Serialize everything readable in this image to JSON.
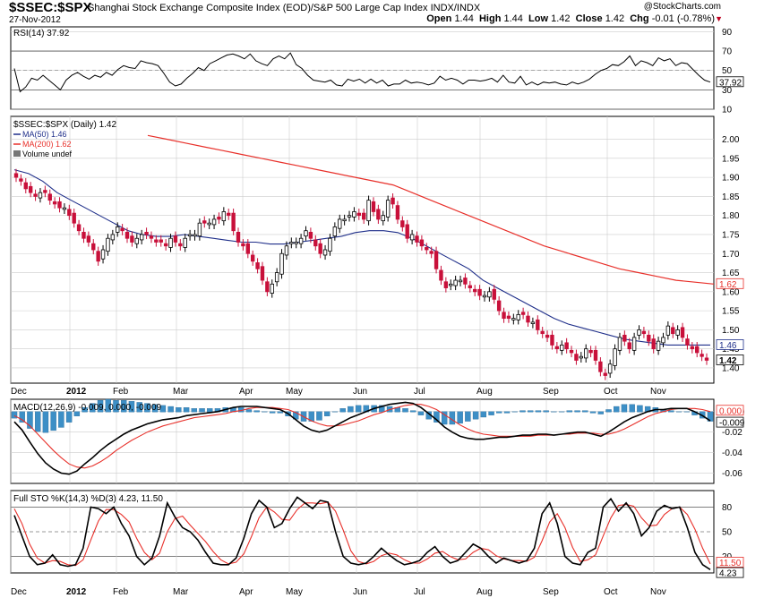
{
  "header": {
    "symbol": "$SSEC:$SPX",
    "name": "Shanghai Stock Exchange Composite Index (EOD)/S&P 500 Large Cap Index  INDX/INDX",
    "date": "27-Nov-2012",
    "credit": "@StockCharts.com",
    "open_label": "Open",
    "open": "1.44",
    "high_label": "High",
    "high": "1.44",
    "low_label": "Low",
    "low": "1.42",
    "close_label": "Close",
    "close": "1.42",
    "chg_label": "Chg",
    "chg": "-0.01 (-0.78%)"
  },
  "colors": {
    "up": "#ffffff",
    "down": "#c8103a",
    "ma50": "#1f2f8a",
    "ma200": "#e8302a",
    "histogram": "#3d8fc6",
    "macd_line": "#000000",
    "signal": "#e8302a",
    "sto_k": "#000000",
    "sto_d": "#e8302a",
    "grid": "#cccccc"
  },
  "chart_data": [
    {
      "type": "line",
      "panel": "rsi",
      "title": "RSI(14) 37.92",
      "y_ticks": [
        10,
        30,
        50,
        70,
        90
      ],
      "levels": [
        30,
        70
      ],
      "ylim": [
        10,
        95
      ],
      "last_label": "37.92",
      "series": [
        {
          "name": "RSI(14)",
          "values": [
            52,
            28,
            33,
            42,
            40,
            45,
            40,
            35,
            30,
            40,
            45,
            48,
            44,
            41,
            45,
            43,
            48,
            45,
            51,
            55,
            53,
            52,
            60,
            58,
            57,
            55,
            47,
            38,
            34,
            36,
            42,
            47,
            53,
            50,
            57,
            60,
            63,
            66,
            67,
            65,
            62,
            67,
            60,
            57,
            55,
            62,
            65,
            62,
            68,
            56,
            52,
            45,
            40,
            39,
            38,
            40,
            35,
            34,
            41,
            39,
            41,
            37,
            41,
            37,
            40,
            34,
            36,
            36,
            40,
            37,
            38,
            37,
            35,
            37,
            44,
            40,
            42,
            40,
            36,
            40,
            40,
            39,
            40,
            42,
            38,
            45,
            38,
            37,
            44,
            35,
            38,
            35,
            38,
            37,
            38,
            36,
            35,
            38,
            36,
            38,
            41,
            46,
            50,
            52,
            56,
            55,
            59,
            65,
            55,
            60,
            58,
            55,
            63,
            60,
            62,
            55,
            58,
            57,
            51,
            45,
            40,
            38
          ]
        }
      ]
    },
    {
      "type": "candlestick",
      "panel": "price",
      "title": "$SSEC:$SPX (Daily) 1.42",
      "legend": [
        "MA(50) 1.46",
        "MA(200) 1.62",
        "Volume undef"
      ],
      "y_ticks": [
        1.4,
        1.45,
        1.5,
        1.55,
        1.6,
        1.65,
        1.7,
        1.75,
        1.8,
        1.85,
        1.9,
        1.95,
        2.0
      ],
      "ylim": [
        1.36,
        2.06
      ],
      "x_labels": [
        "Dec",
        "2012",
        "Feb",
        "Mar",
        "Apr",
        "May",
        "Jun",
        "Jul",
        "Aug",
        "Sep",
        "Oct",
        "Nov"
      ],
      "last_labels": {
        "ma200": "1.62",
        "ma50": "1.46",
        "close": "1.42"
      },
      "close": [
        1.9,
        1.89,
        1.87,
        1.86,
        1.85,
        1.86,
        1.86,
        1.84,
        1.83,
        1.82,
        1.82,
        1.8,
        1.78,
        1.76,
        1.74,
        1.73,
        1.71,
        1.68,
        1.71,
        1.74,
        1.75,
        1.77,
        1.76,
        1.74,
        1.73,
        1.74,
        1.75,
        1.75,
        1.74,
        1.73,
        1.73,
        1.72,
        1.74,
        1.73,
        1.72,
        1.74,
        1.75,
        1.75,
        1.78,
        1.78,
        1.78,
        1.79,
        1.79,
        1.81,
        1.8,
        1.76,
        1.73,
        1.72,
        1.7,
        1.68,
        1.66,
        1.63,
        1.6,
        1.62,
        1.65,
        1.7,
        1.72,
        1.73,
        1.73,
        1.74,
        1.76,
        1.74,
        1.72,
        1.7,
        1.71,
        1.74,
        1.77,
        1.79,
        1.79,
        1.8,
        1.81,
        1.8,
        1.79,
        1.84,
        1.81,
        1.79,
        1.8,
        1.84,
        1.83,
        1.79,
        1.77,
        1.74,
        1.75,
        1.73,
        1.72,
        1.71,
        1.7,
        1.66,
        1.63,
        1.61,
        1.62,
        1.63,
        1.63,
        1.62,
        1.61,
        1.6,
        1.59,
        1.59,
        1.6,
        1.58,
        1.55,
        1.53,
        1.53,
        1.53,
        1.54,
        1.54,
        1.52,
        1.52,
        1.5,
        1.49,
        1.48,
        1.46,
        1.45,
        1.46,
        1.45,
        1.44,
        1.42,
        1.43,
        1.45,
        1.44,
        1.42,
        1.39,
        1.38,
        1.41,
        1.45,
        1.48,
        1.47,
        1.45,
        1.48,
        1.5,
        1.49,
        1.47,
        1.45,
        1.47,
        1.48,
        1.51,
        1.49,
        1.5,
        1.48,
        1.46,
        1.45,
        1.44,
        1.43,
        1.42
      ],
      "series": [
        {
          "name": "MA(50)",
          "values": [
            1.92,
            1.91,
            1.89,
            1.86,
            1.84,
            1.82,
            1.8,
            1.78,
            1.76,
            1.75,
            1.745,
            1.745,
            1.75,
            1.745,
            1.74,
            1.735,
            1.73,
            1.73,
            1.725,
            1.725,
            1.73,
            1.735,
            1.74,
            1.745,
            1.755,
            1.76,
            1.76,
            1.755,
            1.74,
            1.72,
            1.7,
            1.68,
            1.66,
            1.63,
            1.61,
            1.59,
            1.57,
            1.55,
            1.53,
            1.515,
            1.505,
            1.495,
            1.485,
            1.475,
            1.47,
            1.465,
            1.46,
            1.46,
            1.46,
            1.46
          ]
        },
        {
          "name": "MA(200)",
          "values": [
            2.01,
            2.0,
            1.99,
            1.98,
            1.97,
            1.96,
            1.95,
            1.94,
            1.93,
            1.92,
            1.91,
            1.9,
            1.89,
            1.88,
            1.86,
            1.84,
            1.82,
            1.8,
            1.78,
            1.76,
            1.74,
            1.72,
            1.705,
            1.69,
            1.675,
            1.66,
            1.65,
            1.64,
            1.63,
            1.625,
            1.62
          ]
        }
      ]
    },
    {
      "type": "bar",
      "panel": "macd",
      "title": "MACD(12,26,9) -0.009, 0.000, -0.009",
      "y_ticks": [
        0.0,
        -0.02,
        -0.04,
        -0.06
      ],
      "ylim": [
        -0.07,
        0.012
      ],
      "last_labels": {
        "signal": "0.000",
        "macd": "-0.009"
      },
      "series": [
        {
          "name": "MACD",
          "values": [
            -0.01,
            -0.018,
            -0.03,
            -0.041,
            -0.05,
            -0.056,
            -0.06,
            -0.061,
            -0.058,
            -0.051,
            -0.045,
            -0.038,
            -0.032,
            -0.027,
            -0.022,
            -0.018,
            -0.015,
            -0.012,
            -0.01,
            -0.008,
            -0.007,
            -0.006,
            -0.004,
            -0.003,
            -0.002,
            -0.001,
            0.0,
            0.002,
            0.004,
            0.005,
            0.005,
            0.005,
            0.004,
            0.003,
            0.002,
            -0.002,
            -0.008,
            -0.014,
            -0.018,
            -0.02,
            -0.018,
            -0.014,
            -0.01,
            -0.006,
            -0.003,
            0.0,
            0.003,
            0.005,
            0.007,
            0.008,
            0.009,
            0.008,
            0.004,
            -0.002,
            -0.008,
            -0.015,
            -0.02,
            -0.024,
            -0.026,
            -0.027,
            -0.027,
            -0.026,
            -0.025,
            -0.025,
            -0.024,
            -0.023,
            -0.023,
            -0.022,
            -0.022,
            -0.023,
            -0.022,
            -0.021,
            -0.02,
            -0.02,
            -0.022,
            -0.024,
            -0.02,
            -0.015,
            -0.01,
            -0.006,
            -0.003,
            0.0,
            0.002,
            0.002,
            0.003,
            0.003,
            0.003,
            0.0,
            -0.004,
            -0.009
          ]
        },
        {
          "name": "Signal",
          "values": [
            -0.004,
            -0.008,
            -0.014,
            -0.022,
            -0.03,
            -0.038,
            -0.045,
            -0.051,
            -0.054,
            -0.055,
            -0.053,
            -0.049,
            -0.044,
            -0.038,
            -0.033,
            -0.028,
            -0.024,
            -0.02,
            -0.017,
            -0.014,
            -0.012,
            -0.01,
            -0.008,
            -0.006,
            -0.005,
            -0.004,
            -0.003,
            -0.002,
            0.0,
            0.001,
            0.003,
            0.004,
            0.004,
            0.004,
            0.003,
            0.002,
            -0.001,
            -0.005,
            -0.009,
            -0.012,
            -0.014,
            -0.014,
            -0.013,
            -0.011,
            -0.009,
            -0.006,
            -0.003,
            -0.001,
            0.002,
            0.004,
            0.006,
            0.007,
            0.007,
            0.005,
            0.002,
            -0.003,
            -0.008,
            -0.013,
            -0.017,
            -0.02,
            -0.022,
            -0.023,
            -0.024,
            -0.024,
            -0.024,
            -0.024,
            -0.024,
            -0.023,
            -0.023,
            -0.023,
            -0.022,
            -0.022,
            -0.021,
            -0.021,
            -0.021,
            -0.022,
            -0.022,
            -0.02,
            -0.017,
            -0.013,
            -0.009,
            -0.005,
            -0.002,
            0.0,
            0.002,
            0.003,
            0.003,
            0.003,
            0.002,
            0.0
          ]
        }
      ]
    },
    {
      "type": "line",
      "panel": "stochastic",
      "title": "Full STO %K(14,3) %D(3) 4.23, 11.50",
      "y_ticks": [
        20,
        50,
        80
      ],
      "levels": [
        20,
        80
      ],
      "ylim": [
        0,
        100
      ],
      "x_labels": [
        "Dec",
        "2012",
        "Feb",
        "Mar",
        "Apr",
        "May",
        "Jun",
        "Jul",
        "Aug",
        "Sep",
        "Oct",
        "Nov"
      ],
      "last_labels": {
        "d": "11.50",
        "k": "4.23"
      },
      "series": [
        {
          "name": "%K",
          "values": [
            70,
            45,
            20,
            10,
            12,
            22,
            10,
            8,
            10,
            30,
            80,
            78,
            72,
            80,
            60,
            45,
            20,
            10,
            18,
            45,
            85,
            68,
            55,
            50,
            40,
            25,
            12,
            10,
            10,
            18,
            42,
            72,
            88,
            80,
            55,
            60,
            78,
            92,
            85,
            78,
            88,
            86,
            50,
            20,
            12,
            10,
            12,
            20,
            30,
            22,
            15,
            10,
            12,
            15,
            25,
            32,
            20,
            12,
            15,
            25,
            35,
            30,
            20,
            12,
            18,
            15,
            12,
            15,
            30,
            72,
            85,
            60,
            20,
            12,
            10,
            25,
            30,
            80,
            90,
            75,
            85,
            72,
            45,
            55,
            75,
            82,
            78,
            80,
            55,
            25,
            10,
            4
          ]
        },
        {
          "name": "%D",
          "values": [
            78,
            60,
            35,
            18,
            12,
            15,
            14,
            10,
            9,
            16,
            40,
            63,
            77,
            77,
            71,
            62,
            42,
            25,
            16,
            24,
            50,
            66,
            69,
            58,
            48,
            38,
            26,
            16,
            11,
            13,
            23,
            44,
            67,
            80,
            74,
            65,
            64,
            77,
            85,
            85,
            84,
            86,
            75,
            52,
            27,
            14,
            11,
            14,
            21,
            24,
            22,
            16,
            12,
            12,
            17,
            24,
            26,
            20,
            16,
            17,
            25,
            30,
            28,
            21,
            17,
            15,
            15,
            14,
            19,
            39,
            62,
            72,
            55,
            31,
            14,
            16,
            22,
            45,
            67,
            82,
            83,
            81,
            67,
            57,
            58,
            71,
            78,
            80,
            71,
            53,
            30,
            11
          ]
        }
      ]
    }
  ]
}
